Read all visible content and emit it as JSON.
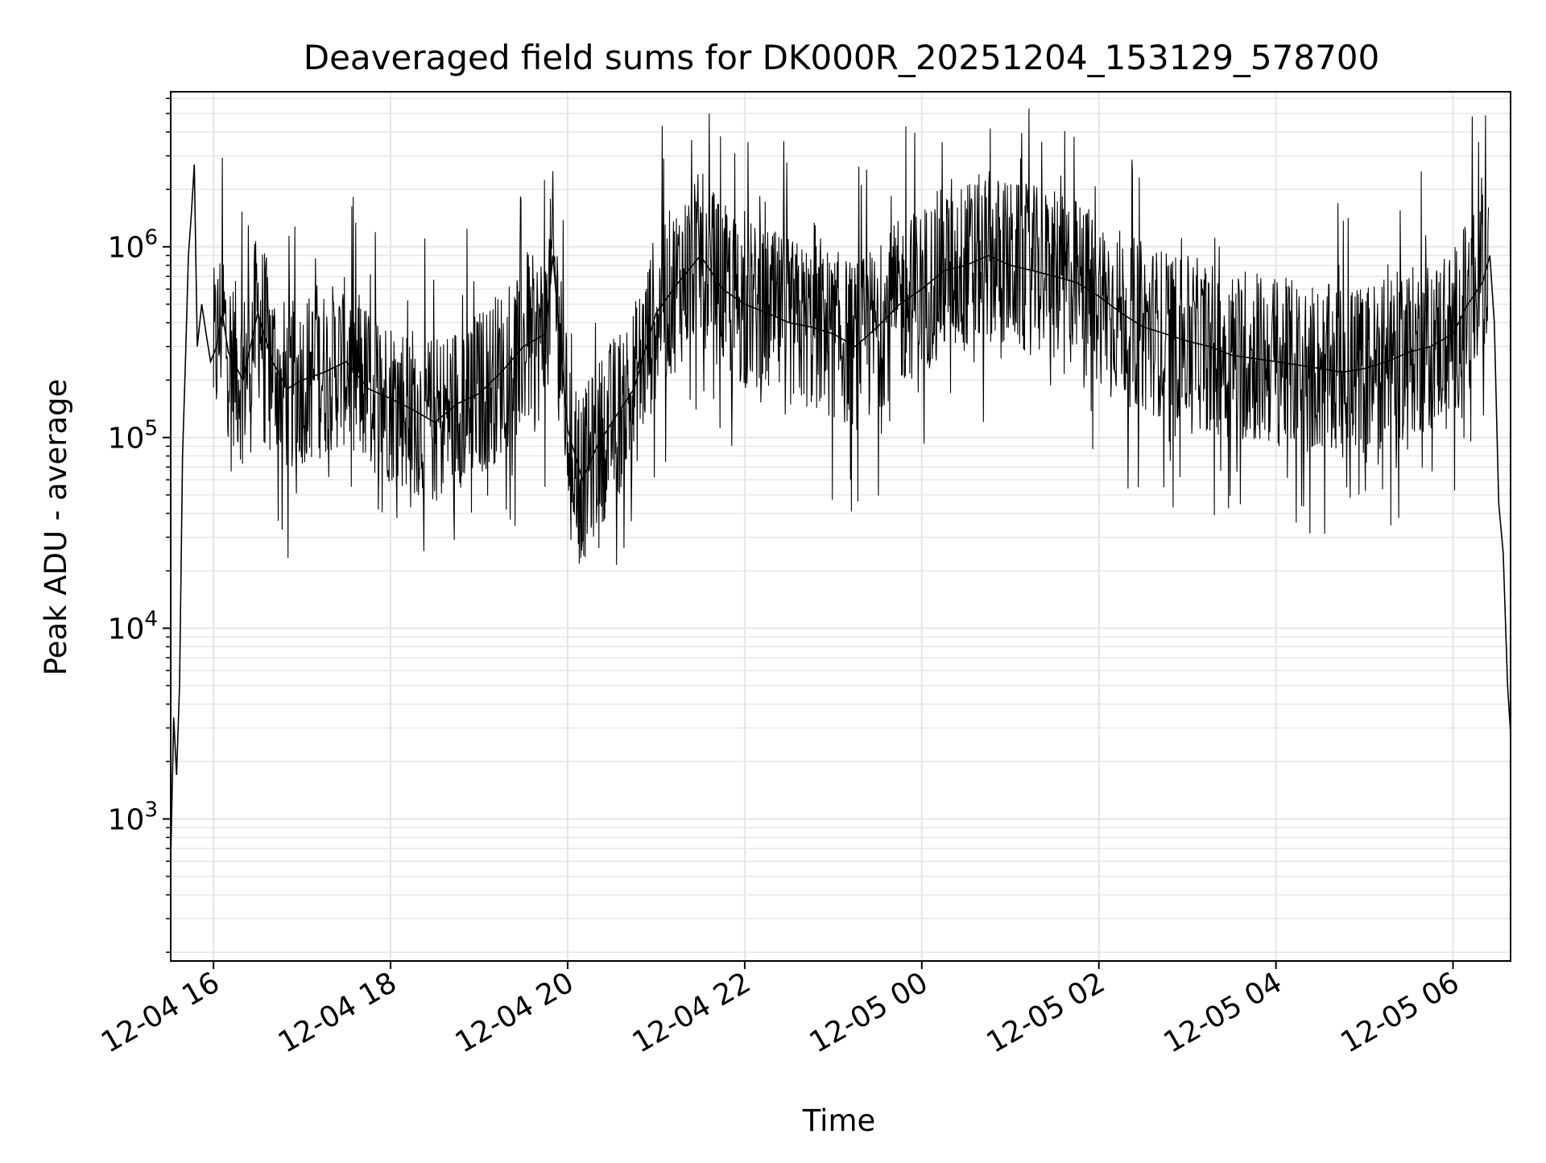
{
  "chart_data": {
    "type": "line",
    "title": "Deaveraged field sums for DK000R_20251204_153129_578700",
    "xlabel": "Time",
    "ylabel": "Peak ADU - average",
    "y_scale": "log",
    "ylim": [
      180,
      6500000
    ],
    "xlim": [
      "2025-12-04 15:31",
      "2025-12-05 06:39"
    ],
    "grid": true,
    "grid_minor": true,
    "line_color": "#000000",
    "grid_color": "#e5e5e5",
    "x_ticks": [
      {
        "value": "2025-12-04 16:00",
        "label": "12-04 16"
      },
      {
        "value": "2025-12-04 18:00",
        "label": "12-04 18"
      },
      {
        "value": "2025-12-04 20:00",
        "label": "12-04 20"
      },
      {
        "value": "2025-12-04 22:00",
        "label": "12-04 22"
      },
      {
        "value": "2025-12-05 00:00",
        "label": "12-05 00"
      },
      {
        "value": "2025-12-05 02:00",
        "label": "12-05 02"
      },
      {
        "value": "2025-12-05 04:00",
        "label": "12-05 04"
      },
      {
        "value": "2025-12-05 06:00",
        "label": "12-05 06"
      }
    ],
    "y_ticks": [
      {
        "value": 1000,
        "base": "10",
        "exp": "3"
      },
      {
        "value": 10000,
        "base": "10",
        "exp": "4"
      },
      {
        "value": 100000,
        "base": "10",
        "exp": "5"
      },
      {
        "value": 1000000,
        "base": "10",
        "exp": "6"
      }
    ],
    "series": [
      {
        "x": [
          "2025-12-04 15:31",
          "2025-12-04 15:33",
          "2025-12-04 15:35",
          "2025-12-04 15:37",
          "2025-12-04 15:39",
          "2025-12-04 15:41",
          "2025-12-04 15:43",
          "2025-12-04 15:45",
          "2025-12-04 15:47",
          "2025-12-04 15:49",
          "2025-12-04 15:52",
          "2025-12-04 15:55",
          "2025-12-04 15:58",
          "2025-12-04 16:02",
          "2025-12-04 16:06",
          "2025-12-04 16:10",
          "2025-12-04 16:20",
          "2025-12-04 16:30",
          "2025-12-04 16:40",
          "2025-12-04 16:50",
          "2025-12-04 17:00",
          "2025-12-04 17:15",
          "2025-12-04 17:30",
          "2025-12-04 17:45",
          "2025-12-04 18:00",
          "2025-12-04 18:15",
          "2025-12-04 18:30",
          "2025-12-04 18:45",
          "2025-12-04 19:00",
          "2025-12-04 19:15",
          "2025-12-04 19:30",
          "2025-12-04 19:45",
          "2025-12-04 19:50",
          "2025-12-04 20:00",
          "2025-12-04 20:10",
          "2025-12-04 20:20",
          "2025-12-04 20:30",
          "2025-12-04 20:45",
          "2025-12-04 21:00",
          "2025-12-04 21:15",
          "2025-12-04 21:30",
          "2025-12-04 21:45",
          "2025-12-04 22:00",
          "2025-12-04 22:15",
          "2025-12-04 22:30",
          "2025-12-04 22:45",
          "2025-12-04 23:00",
          "2025-12-04 23:15",
          "2025-12-04 23:30",
          "2025-12-04 23:45",
          "2025-12-05 00:00",
          "2025-12-05 00:15",
          "2025-12-05 00:30",
          "2025-12-05 00:45",
          "2025-12-05 01:00",
          "2025-12-05 01:15",
          "2025-12-05 01:30",
          "2025-12-05 01:45",
          "2025-12-05 02:00",
          "2025-12-05 02:15",
          "2025-12-05 02:30",
          "2025-12-05 02:45",
          "2025-12-05 03:00",
          "2025-12-05 03:15",
          "2025-12-05 03:30",
          "2025-12-05 03:45",
          "2025-12-05 04:00",
          "2025-12-05 04:15",
          "2025-12-05 04:30",
          "2025-12-05 04:45",
          "2025-12-05 05:00",
          "2025-12-05 05:15",
          "2025-12-05 05:30",
          "2025-12-05 05:45",
          "2025-12-05 06:00",
          "2025-12-05 06:10",
          "2025-12-05 06:20",
          "2025-12-05 06:25",
          "2025-12-05 06:28",
          "2025-12-05 06:31",
          "2025-12-05 06:34",
          "2025-12-05 06:37",
          "2025-12-05 06:39"
        ],
        "y": [
          600,
          3400,
          1700,
          5000,
          80000,
          250000,
          900000,
          1500000,
          2700000,
          300000,
          500000,
          350000,
          250000,
          300000,
          450000,
          280000,
          200000,
          450000,
          250000,
          180000,
          200000,
          220000,
          250000,
          180000,
          160000,
          140000,
          120000,
          150000,
          170000,
          220000,
          300000,
          350000,
          900000,
          110000,
          60000,
          90000,
          120000,
          180000,
          450000,
          650000,
          900000,
          600000,
          500000,
          450000,
          400000,
          380000,
          350000,
          300000,
          380000,
          500000,
          600000,
          750000,
          800000,
          900000,
          800000,
          750000,
          700000,
          650000,
          550000,
          450000,
          380000,
          350000,
          320000,
          300000,
          270000,
          260000,
          250000,
          240000,
          230000,
          220000,
          230000,
          250000,
          280000,
          300000,
          350000,
          500000,
          650000,
          900000,
          400000,
          45000,
          25000,
          5000,
          2800
        ]
      }
    ]
  }
}
